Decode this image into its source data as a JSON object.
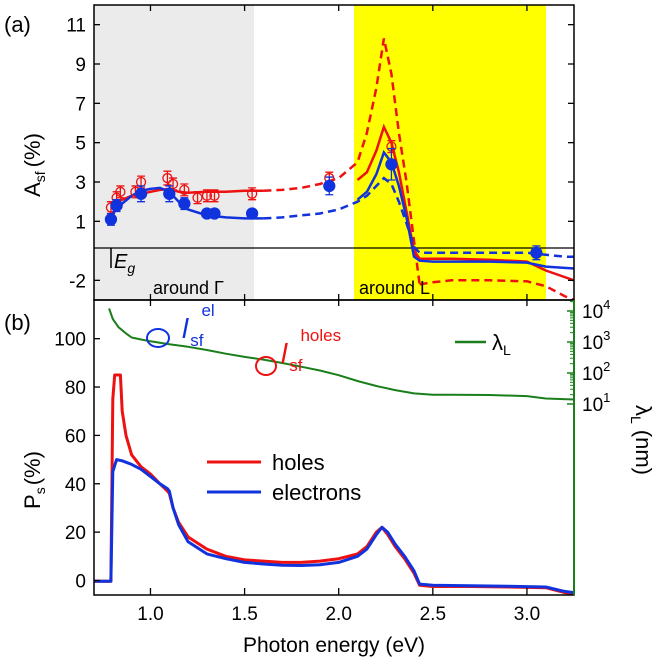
{
  "panel_a": {
    "label": "(a)",
    "ylabel_main": "A",
    "ylabel_sub": "sf",
    "ylabel_unit": "(%)",
    "eg_main": "E",
    "eg_sub": "g",
    "region_gamma": "around Γ",
    "region_l": "around L"
  },
  "panel_b": {
    "label": "(b)",
    "ylabel_main": "P",
    "ylabel_sub": "s",
    "ylabel_unit": "(%)",
    "xlabel": "Photon energy (eV)",
    "y2label_main": "λ",
    "y2label_sub": "L",
    "y2label_unit": "(nm)",
    "annot_el_main": "l",
    "annot_el_sub": "sf",
    "annot_el_sup": "el",
    "annot_holes_main": "l",
    "annot_holes_sub": "sf",
    "annot_holes_sup": "holes",
    "lambda_legend_main": "λ",
    "lambda_legend_sub": "L",
    "legend_holes": "holes",
    "legend_electrons": "electrons"
  },
  "colors": {
    "red": "#ee1111",
    "blue": "#1133dd",
    "green": "#1a7f1a",
    "gray_band": "#ebebeb",
    "yellow_band": "#ffff00"
  },
  "chart_data": [
    {
      "type": "line",
      "panel": "a",
      "xlim": [
        0.7,
        3.25
      ],
      "ylim": [
        -3,
        12
      ],
      "yticks": [
        "-2",
        "1",
        "3",
        "5",
        "7",
        "9",
        "11"
      ],
      "ytick_values": [
        -2,
        1,
        3,
        5,
        7,
        9,
        11
      ],
      "hline": 0,
      "bands": [
        {
          "name": "around Γ",
          "from": 0.7,
          "to": 1.55
        },
        {
          "name": "around L",
          "from": 2.08,
          "to": 3.1
        }
      ],
      "series": [
        {
          "color": "red",
          "style": "solid",
          "x": [
            0.8,
            0.85,
            0.9,
            0.95,
            1.0,
            1.05,
            1.1,
            1.15,
            1.2,
            1.3,
            1.4,
            1.5,
            1.6
          ],
          "y": [
            1.9,
            2.1,
            2.3,
            2.4,
            2.5,
            2.6,
            2.65,
            2.5,
            2.45,
            2.5,
            2.5,
            2.55,
            2.55
          ]
        },
        {
          "color": "red",
          "style": "dashed",
          "x": [
            1.6,
            1.7,
            1.8,
            1.9,
            2.0,
            2.1,
            2.15,
            2.2,
            2.24,
            2.28,
            2.32,
            2.36,
            2.4,
            2.43
          ],
          "y": [
            2.55,
            2.6,
            2.7,
            2.9,
            3.2,
            4.0,
            5.5,
            7.8,
            10.3,
            8.5,
            5.5,
            3.0,
            0.0,
            -2.2
          ]
        },
        {
          "color": "red",
          "style": "solid",
          "x": [
            2.1,
            2.15,
            2.2,
            2.24,
            2.28,
            2.32,
            2.36,
            2.4,
            2.43,
            2.5,
            2.6,
            2.8,
            3.0,
            3.1,
            3.25
          ],
          "y": [
            3.1,
            3.5,
            4.6,
            5.8,
            5.0,
            3.5,
            1.5,
            -0.5,
            -0.9,
            -0.9,
            -0.9,
            -0.95,
            -1.05,
            -1.5,
            -2.0
          ]
        },
        {
          "color": "red",
          "style": "dashed",
          "x": [
            2.43,
            2.5,
            2.6,
            2.8,
            3.0,
            3.1,
            3.2,
            3.25
          ],
          "y": [
            -2.2,
            -2.1,
            -2.0,
            -2.0,
            -2.05,
            -2.3,
            -2.8,
            -3.0
          ]
        },
        {
          "color": "blue",
          "style": "solid",
          "x": [
            0.78,
            0.8,
            0.85,
            0.9,
            0.95,
            1.0,
            1.05,
            1.1,
            1.15,
            1.2,
            1.3,
            1.4,
            1.5,
            1.6
          ],
          "y": [
            1.1,
            1.4,
            1.9,
            2.3,
            2.55,
            2.65,
            2.7,
            2.5,
            2.0,
            1.6,
            1.3,
            1.2,
            1.15,
            1.15
          ]
        },
        {
          "color": "blue",
          "style": "dashed",
          "x": [
            1.6,
            1.7,
            1.8,
            1.9,
            2.0,
            2.1,
            2.15,
            2.2,
            2.24,
            2.28,
            2.32,
            2.36,
            2.4,
            2.43,
            2.5,
            2.6,
            2.8,
            3.0,
            3.1,
            3.2,
            3.25
          ],
          "y": [
            1.15,
            1.2,
            1.3,
            1.4,
            1.6,
            2.0,
            2.3,
            2.8,
            3.2,
            2.9,
            2.0,
            0.9,
            -0.3,
            -0.6,
            -0.6,
            -0.6,
            -0.6,
            -0.6,
            -0.7,
            -0.8,
            -0.8
          ]
        },
        {
          "color": "blue",
          "style": "solid",
          "x": [
            2.1,
            2.15,
            2.2,
            2.24,
            2.28,
            2.32,
            2.36,
            2.4,
            2.43,
            2.5,
            2.6,
            2.8,
            3.0,
            3.1,
            3.25
          ],
          "y": [
            2.1,
            2.5,
            3.4,
            4.5,
            4.0,
            2.8,
            1.2,
            -0.8,
            -1.0,
            -1.05,
            -1.05,
            -1.05,
            -1.1,
            -1.3,
            -1.4
          ]
        }
      ],
      "points": [
        {
          "color": "red",
          "filled": false,
          "x": [
            0.79,
            0.82,
            0.84,
            0.92,
            0.95,
            1.09,
            1.12,
            1.18,
            1.25,
            1.3,
            1.34,
            1.54,
            1.95,
            2.28
          ],
          "y": [
            1.7,
            2.2,
            2.5,
            2.5,
            3.0,
            3.2,
            2.9,
            2.6,
            2.2,
            2.3,
            2.3,
            2.4,
            3.2,
            4.8
          ],
          "err": [
            0.3,
            0.3,
            0.3,
            0.3,
            0.3,
            0.35,
            0.3,
            0.3,
            0.3,
            0.3,
            0.3,
            0.3,
            0.3,
            0.3
          ]
        },
        {
          "color": "blue",
          "filled": true,
          "x": [
            0.79,
            0.82,
            0.95,
            1.1,
            1.18,
            1.3,
            1.34,
            1.54,
            1.95,
            2.28,
            3.05
          ],
          "y": [
            1.1,
            1.8,
            2.4,
            2.4,
            1.9,
            1.4,
            1.4,
            1.4,
            2.8,
            3.9,
            -0.6
          ],
          "err": [
            0.3,
            0.3,
            0.4,
            0.4,
            0.3,
            0.1,
            0.1,
            0.1,
            0.45,
            0.8,
            0.35
          ]
        }
      ]
    },
    {
      "type": "line",
      "panel": "b",
      "xlabel": "Photon energy (eV)",
      "xlim": [
        0.7,
        3.25
      ],
      "xticks": [
        "1.0",
        "1.5",
        "2.0",
        "2.5",
        "3.0"
      ],
      "xtick_values": [
        1.0,
        1.5,
        2.0,
        2.5,
        3.0
      ],
      "ylim": [
        -6,
        116
      ],
      "yticks": [
        "0",
        "20",
        "40",
        "60",
        "80",
        "100"
      ],
      "ytick_values": [
        0,
        20,
        40,
        60,
        80,
        100
      ],
      "y2_scale": "log",
      "y2ticks": [
        {
          "base": "10",
          "exp": "1",
          "value": 10
        },
        {
          "base": "10",
          "exp": "2",
          "value": 100
        },
        {
          "base": "10",
          "exp": "3",
          "value": 1000
        },
        {
          "base": "10",
          "exp": "4",
          "value": 10000
        }
      ],
      "series": [
        {
          "name": "holes",
          "color": "red",
          "x": [
            0.7,
            0.79,
            0.8,
            0.81,
            0.84,
            0.85,
            0.87,
            0.9,
            0.95,
            1.0,
            1.05,
            1.09,
            1.1,
            1.12,
            1.15,
            1.2,
            1.3,
            1.4,
            1.5,
            1.6,
            1.7,
            1.8,
            1.9,
            2.0,
            2.1,
            2.15,
            2.2,
            2.23,
            2.26,
            2.3,
            2.35,
            2.4,
            2.43,
            2.5,
            2.7,
            2.9,
            3.1,
            3.2,
            3.25
          ],
          "y": [
            -0.3,
            -0.3,
            75,
            85,
            85,
            70,
            60,
            52,
            47,
            44,
            40,
            37,
            36,
            30,
            24,
            18,
            13,
            10,
            8.5,
            8,
            7.5,
            7.5,
            8,
            9,
            11,
            14,
            20,
            22,
            19,
            14,
            9,
            3,
            -2,
            -2.5,
            -2.5,
            -2.7,
            -3,
            -5,
            -5.5
          ]
        },
        {
          "name": "electrons",
          "color": "blue",
          "x": [
            0.7,
            0.79,
            0.8,
            0.82,
            0.85,
            0.9,
            0.95,
            1.0,
            1.05,
            1.09,
            1.1,
            1.12,
            1.15,
            1.2,
            1.3,
            1.4,
            1.5,
            1.6,
            1.7,
            1.8,
            1.9,
            2.0,
            2.1,
            2.15,
            2.2,
            2.23,
            2.26,
            2.3,
            2.35,
            2.4,
            2.43,
            2.5,
            2.7,
            2.9,
            3.1,
            3.2,
            3.25
          ],
          "y": [
            -0.3,
            -0.3,
            45,
            50,
            49.5,
            48,
            46,
            43,
            40,
            38,
            37,
            30,
            23,
            16,
            11,
            9,
            7.5,
            6.8,
            6.3,
            6.2,
            6.5,
            7.5,
            10,
            13,
            19,
            22,
            20,
            15,
            10,
            4,
            -1.5,
            -2,
            -2.2,
            -2.4,
            -2.7,
            -4.5,
            -5
          ]
        },
        {
          "name": "λL",
          "color": "green",
          "axis": "y2",
          "x": [
            0.78,
            0.8,
            0.83,
            0.87,
            0.9,
            0.95,
            1.0,
            1.1,
            1.2,
            1.3,
            1.4,
            1.5,
            1.6,
            1.7,
            1.8,
            1.9,
            2.0,
            2.1,
            2.2,
            2.3,
            2.4,
            2.5,
            2.6,
            2.8,
            3.0,
            3.1,
            3.25
          ],
          "y": [
            12000,
            5500,
            3000,
            1900,
            1400,
            1200,
            1050,
            850,
            700,
            550,
            420,
            330,
            270,
            210,
            160,
            120,
            85,
            55,
            38,
            28,
            22,
            20,
            20,
            19.5,
            18,
            15,
            14
          ]
        }
      ]
    }
  ]
}
